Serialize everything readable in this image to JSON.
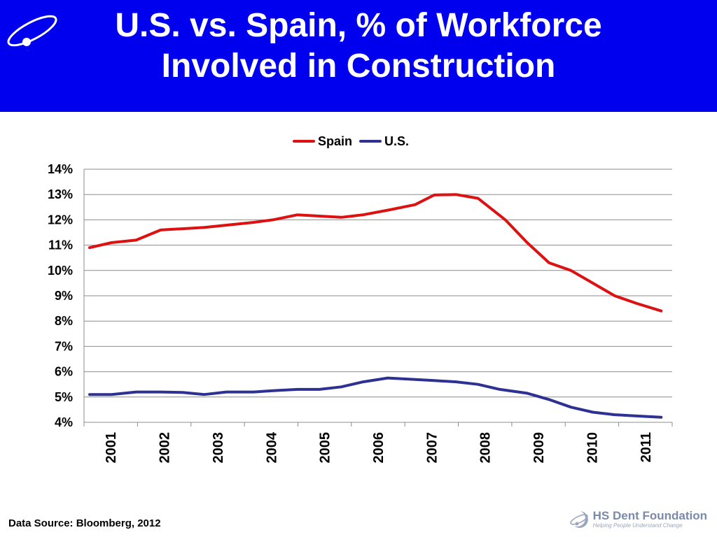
{
  "header": {
    "title_line1": "U.S. vs. Spain, % of Workforce",
    "title_line2": "Involved in Construction"
  },
  "logo": {
    "icon": "orbit-logo-icon",
    "color": "#ffffff"
  },
  "footer": {
    "source": "Data Source: Bloomberg, 2012",
    "brand_name": "HS Dent Foundation",
    "brand_tagline": "Helping People Understand Change",
    "brand_icon": "orbit-logo-icon"
  },
  "chart_data": {
    "type": "line",
    "x_ticks": [
      "2001",
      "2002",
      "2003",
      "2004",
      "2005",
      "2006",
      "2007",
      "2008",
      "2009",
      "2010",
      "2011"
    ],
    "y_ticks": [
      "4%",
      "5%",
      "6%",
      "7%",
      "8%",
      "9%",
      "10%",
      "11%",
      "12%",
      "13%",
      "14%"
    ],
    "ylim": [
      4,
      14
    ],
    "xlim": [
      2001,
      2011.6
    ],
    "grid": "horizontal",
    "legend_position": "top-center",
    "series": [
      {
        "name": "Spain",
        "color": "#dd1111",
        "points": [
          [
            2001.0,
            10.9
          ],
          [
            2001.4,
            11.1
          ],
          [
            2001.85,
            11.2
          ],
          [
            2002.3,
            11.6
          ],
          [
            2002.7,
            11.65
          ],
          [
            2003.1,
            11.7
          ],
          [
            2003.55,
            11.8
          ],
          [
            2004.0,
            11.9
          ],
          [
            2004.35,
            12.0
          ],
          [
            2004.8,
            12.2
          ],
          [
            2005.2,
            12.15
          ],
          [
            2005.6,
            12.1
          ],
          [
            2006.0,
            12.2
          ],
          [
            2006.5,
            12.4
          ],
          [
            2006.95,
            12.6
          ],
          [
            2007.3,
            12.98
          ],
          [
            2007.7,
            13.0
          ],
          [
            2008.1,
            12.85
          ],
          [
            2008.6,
            12.0
          ],
          [
            2009.0,
            11.1
          ],
          [
            2009.4,
            10.3
          ],
          [
            2009.8,
            10.0
          ],
          [
            2010.2,
            9.5
          ],
          [
            2010.6,
            9.0
          ],
          [
            2011.0,
            8.7
          ],
          [
            2011.45,
            8.4
          ]
        ]
      },
      {
        "name": "U.S.",
        "color": "#2e3192",
        "points": [
          [
            2001.0,
            5.1
          ],
          [
            2001.4,
            5.1
          ],
          [
            2001.85,
            5.2
          ],
          [
            2002.3,
            5.2
          ],
          [
            2002.7,
            5.18
          ],
          [
            2003.1,
            5.1
          ],
          [
            2003.5,
            5.2
          ],
          [
            2004.0,
            5.2
          ],
          [
            2004.35,
            5.25
          ],
          [
            2004.8,
            5.3
          ],
          [
            2005.2,
            5.3
          ],
          [
            2005.6,
            5.4
          ],
          [
            2006.0,
            5.6
          ],
          [
            2006.45,
            5.75
          ],
          [
            2006.9,
            5.7
          ],
          [
            2007.3,
            5.65
          ],
          [
            2007.7,
            5.6
          ],
          [
            2008.1,
            5.5
          ],
          [
            2008.5,
            5.3
          ],
          [
            2009.0,
            5.15
          ],
          [
            2009.4,
            4.9
          ],
          [
            2009.8,
            4.6
          ],
          [
            2010.2,
            4.4
          ],
          [
            2010.6,
            4.3
          ],
          [
            2011.0,
            4.25
          ],
          [
            2011.45,
            4.2
          ]
        ]
      }
    ]
  }
}
